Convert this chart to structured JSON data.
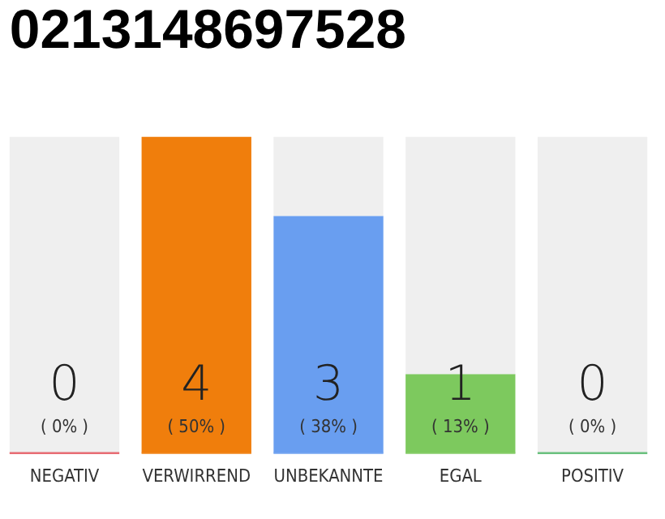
{
  "chart_data": {
    "type": "bar",
    "title": "0213148697528",
    "categories": [
      "NEGATIV",
      "VERWIRREND",
      "UNBEKANNTE",
      "EGAL",
      "POSITIV"
    ],
    "stacked": true,
    "series": [
      {
        "colors": [
          "#e0303a",
          "#f07e0c",
          "#699ef0",
          "#7dc95e",
          "#2ea84a"
        ],
        "values": [
          0,
          4,
          3,
          1,
          0
        ],
        "value_labels": [
          "0",
          "4",
          "3",
          "1",
          "0"
        ]
      },
      {
        "color": "#efefef",
        "values": [
          4,
          0,
          1,
          3,
          4
        ]
      }
    ],
    "annotations": [
      "( 0% )",
      "( 50% )",
      "( 38% )",
      "( 13% )",
      "( 0% )"
    ]
  }
}
